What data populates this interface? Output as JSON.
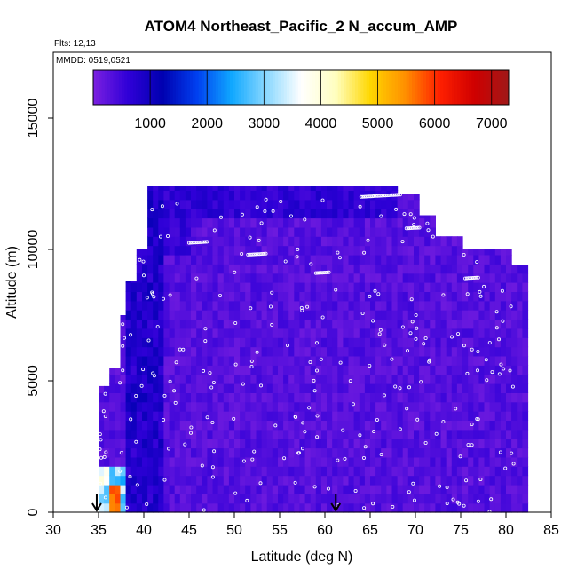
{
  "chart_data": {
    "type": "heatmap",
    "title": "ATOM4 Northeast_Pacific_2 N_accum_AMP",
    "flights_label": "Flts: 12,13",
    "dates_label": "MMDD: 0519,0521",
    "xlabel": "Latitude (deg N)",
    "ylabel": "Altitude (m)",
    "xlim": [
      30,
      85
    ],
    "ylim": [
      0,
      17500
    ],
    "x_ticks": [
      "30",
      "35",
      "40",
      "45",
      "50",
      "55",
      "60",
      "65",
      "70",
      "75",
      "80",
      "85"
    ],
    "y_ticks": [
      "0",
      "5000",
      "10000",
      "15000"
    ],
    "colorbar": {
      "range": [
        0,
        7300
      ],
      "ticks": [
        "1000",
        "2000",
        "3000",
        "4000",
        "5000",
        "6000",
        "7000"
      ],
      "colors": [
        "#7b20e0",
        "#3000d8",
        "#0000b0",
        "#0040f0",
        "#10a8ff",
        "#8ad8ff",
        "#ffffff",
        "#fffec0",
        "#ffd700",
        "#ff9000",
        "#ff2000",
        "#d00000",
        "#a01818"
      ]
    },
    "grid": false,
    "arrows_at_latitude": [
      34.8,
      61.2
    ],
    "coverage_columns": [
      {
        "lat": [
          35,
          36
        ],
        "top": 4800
      },
      {
        "lat": [
          36,
          37
        ],
        "top": 5500
      },
      {
        "lat": [
          37,
          38
        ],
        "top": 7500
      },
      {
        "lat": [
          38,
          39
        ],
        "top": 8800
      },
      {
        "lat": [
          39,
          40
        ],
        "top": 10000
      },
      {
        "lat": [
          40,
          42
        ],
        "top": 12400
      },
      {
        "lat": [
          42,
          58
        ],
        "top": 12400
      },
      {
        "lat": [
          58,
          68
        ],
        "top": 12400
      },
      {
        "lat": [
          68,
          70
        ],
        "top": 12100
      },
      {
        "lat": [
          70,
          72
        ],
        "top": 11300
      },
      {
        "lat": [
          72,
          75
        ],
        "top": 10500
      },
      {
        "lat": [
          75,
          80
        ],
        "top": 10000
      },
      {
        "lat": [
          80,
          82
        ],
        "top": 9400
      }
    ],
    "representative_values": [
      {
        "region": "latitude 35-38, altitude 0-1500",
        "value": 3500
      },
      {
        "region": "latitude 36-37, altitude 0-800",
        "value": 5200
      },
      {
        "region": "latitude 38-42, all altitudes",
        "value": 700
      },
      {
        "region": "latitude 42-82, altitude 0-10000",
        "value": 250
      },
      {
        "region": "latitude 40-68, altitude 11000-12400",
        "value": 600
      }
    ]
  }
}
